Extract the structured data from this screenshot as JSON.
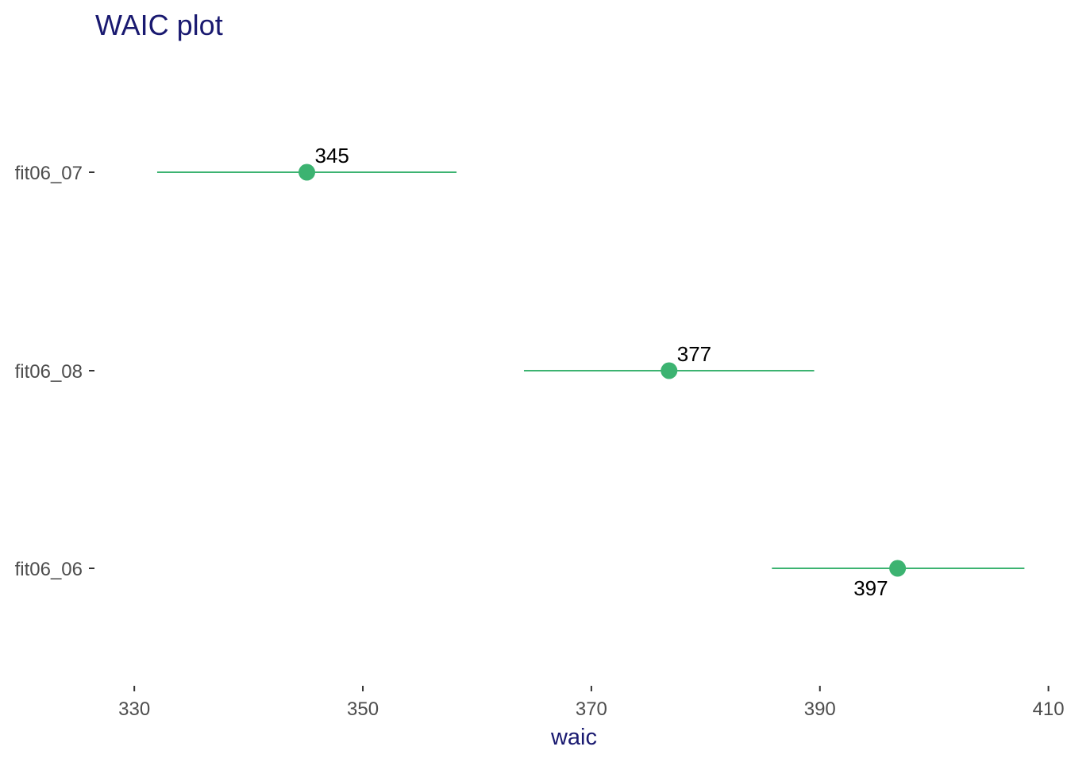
{
  "chart_data": {
    "type": "scatter",
    "title": "WAIC plot",
    "xlabel": "waic",
    "ylabel": "",
    "xlim": [
      327,
      411
    ],
    "x_ticks": [
      330,
      350,
      370,
      390,
      410
    ],
    "grid": false,
    "legend": "none",
    "color": "#3cb371",
    "models": [
      {
        "name": "fit06_07",
        "waic": 345.1,
        "lower": 332.0,
        "upper": 358.2,
        "label": "345",
        "label_pos": "above"
      },
      {
        "name": "fit06_08",
        "waic": 376.8,
        "lower": 364.1,
        "upper": 389.5,
        "label": "377",
        "label_pos": "above"
      },
      {
        "name": "fit06_06",
        "waic": 396.8,
        "lower": 385.8,
        "upper": 407.9,
        "label": "397",
        "label_pos": "below"
      }
    ]
  }
}
